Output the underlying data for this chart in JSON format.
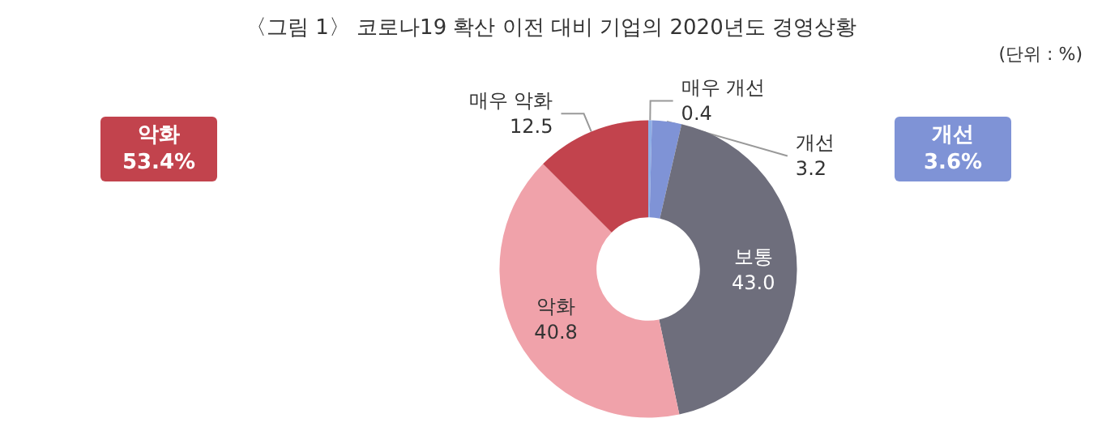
{
  "chart_data": {
    "type": "donut",
    "title": "〈그림 1〉 코로나19 확산 이전 대비 기업의 2020년도 경영상황",
    "annotations": [
      "(단위 : %)",
      "악화\n53.4%",
      "개선\n3.6%"
    ],
    "categories": [
      "매우 개선",
      "개선",
      "보통",
      "악화",
      "매우 악화"
    ],
    "values": [
      0.4,
      3.2,
      43.0,
      40.8,
      12.5
    ],
    "value_labels": [
      "0.4",
      "3.2",
      "43.0",
      "40.8",
      "12.5"
    ],
    "colors": [
      "#8eaee6",
      "#7f93d6",
      "#6e6e7c",
      "#f0a2aa",
      "#c2434d"
    ],
    "legend": false
  }
}
